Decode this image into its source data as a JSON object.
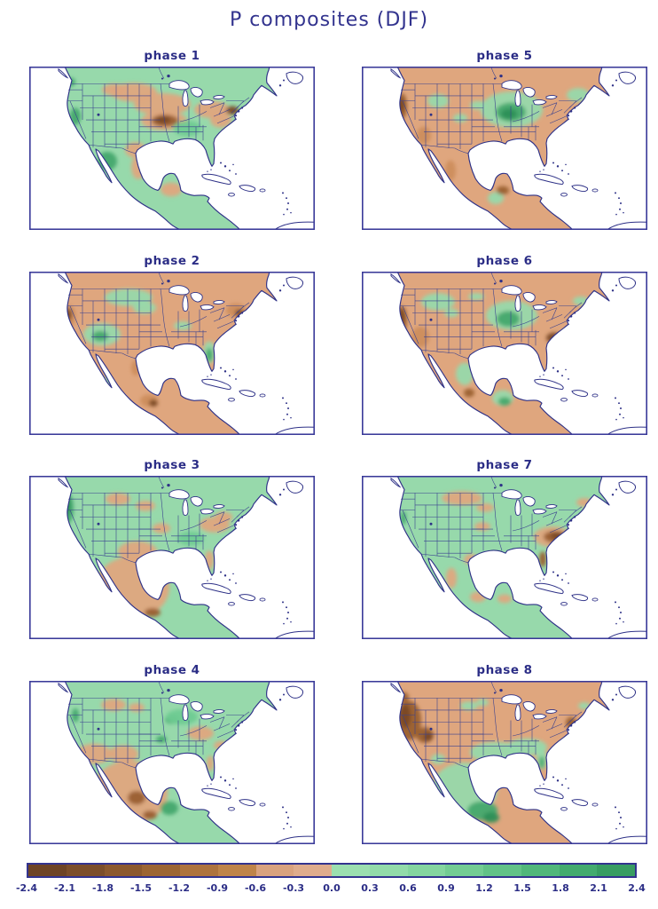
{
  "title": "P composites (DJF)",
  "chart_data": {
    "type": "heatmap",
    "title": "P composites (DJF)",
    "layout": "4x2 grid of North America precipitation-anomaly composite maps, one per MJO phase, shared colorbar at bottom",
    "units": "precipitation anomaly (shaded)",
    "palette": {
      "tan": "#DFA67E",
      "tan2": "#CE8D5C",
      "brown": "#9A5F30",
      "dkbrown": "#7A4826",
      "green": "#97D9AB",
      "green2": "#6FCB92",
      "dkgreen": "#45A86D",
      "vdkgreen": "#2E8F57"
    },
    "panels": [
      {
        "label": "phase 1",
        "base": "green",
        "summary": "Wet West Coast, Southeast and Northeast interior; dry central/northern Plains with strong dry core over Oklahoma-Missouri and dry mid-Atlantic coast; wet northwest Mexico, dry Gulf coast of Mexico and Yucatan.",
        "patches": [
          [
            "tan",
            118,
            30,
            26,
            11
          ],
          [
            "tan",
            150,
            44,
            32,
            13
          ],
          [
            "tan",
            152,
            63,
            26,
            11
          ],
          [
            "tan",
            96,
            27,
            14,
            7
          ],
          [
            "tan",
            206,
            50,
            20,
            10
          ],
          [
            "tan",
            216,
            62,
            12,
            9
          ],
          [
            "tan",
            120,
            97,
            12,
            9
          ],
          [
            "tan",
            123,
            117,
            8,
            14
          ],
          [
            "tan",
            160,
            143,
            12,
            8
          ],
          [
            "brown",
            153,
            63,
            15,
            7
          ],
          [
            "dkbrown",
            151,
            62,
            8,
            4
          ],
          [
            "dkbrown",
            229,
            51,
            7,
            5
          ],
          [
            "dkgreen",
            52,
            58,
            6,
            10
          ],
          [
            "dkgreen",
            88,
            110,
            11,
            11
          ],
          [
            "dkgreen",
            47,
            18,
            5,
            5
          ],
          [
            "green2",
            178,
            72,
            16,
            9
          ]
        ]
      },
      {
        "label": "phase 2",
        "base": "tan",
        "summary": "Dry over most of CONUS and Mexico; wet Southwest, northern Plains band and Florida; strong dry California and Northeast coasts and southern Mexico.",
        "patches": [
          [
            "green",
            82,
            73,
            21,
            13
          ],
          [
            "dkgreen",
            80,
            75,
            9,
            6
          ],
          [
            "green",
            112,
            30,
            27,
            10
          ],
          [
            "green",
            130,
            42,
            13,
            7
          ],
          [
            "green",
            203,
            94,
            7,
            13
          ],
          [
            "dkgreen",
            203,
            97,
            4,
            8
          ],
          [
            "green",
            173,
            63,
            10,
            5
          ],
          [
            "green",
            88,
            128,
            5,
            6
          ],
          [
            "tan2",
            45,
            52,
            7,
            13
          ],
          [
            "dkbrown",
            44,
            50,
            4,
            7
          ],
          [
            "tan2",
            233,
            45,
            11,
            8
          ],
          [
            "dkbrown",
            237,
            48,
            5,
            4
          ],
          [
            "tan2",
            135,
            150,
            10,
            7
          ],
          [
            "dkbrown",
            140,
            153,
            5,
            4
          ],
          [
            "tan2",
            120,
            112,
            5,
            9
          ]
        ]
      },
      {
        "label": "phase 3",
        "base": "green",
        "summary": "Wet across the West and Midwest with strong wet Pacific Northwest coast; dry Texas, all of Mexico and the mid-Atlantic; dry patches in northern Plains.",
        "patches": [
          [
            "dkgreen",
            44,
            38,
            6,
            17
          ],
          [
            "vdkgreen",
            43,
            35,
            3,
            10
          ],
          [
            "tan",
            116,
            130,
            42,
            36
          ],
          [
            "tan",
            122,
            88,
            22,
            12
          ],
          [
            "tan",
            100,
            27,
            14,
            7
          ],
          [
            "tan",
            131,
            35,
            11,
            6
          ],
          [
            "tan",
            209,
            57,
            17,
            9
          ],
          [
            "tan",
            219,
            48,
            10,
            6
          ],
          [
            "tan",
            203,
            98,
            5,
            11
          ],
          [
            "tan",
            149,
            61,
            10,
            6
          ],
          [
            "brown",
            139,
            159,
            9,
            5
          ],
          [
            "green2",
            182,
            73,
            15,
            8
          ]
        ]
      },
      {
        "label": "phase 4",
        "base": "green",
        "summary": "Wet northern and eastern U.S.; dry Southwest, west Texas and Mexico with dark dry west-Mexico coast; dry Tennessee-Virginia strip; wet Yucatan/Guatemala.",
        "patches": [
          [
            "tan",
            73,
            85,
            20,
            12
          ],
          [
            "tan",
            113,
            130,
            43,
            37
          ],
          [
            "tan",
            106,
            85,
            17,
            10
          ],
          [
            "tan",
            95,
            28,
            14,
            7
          ],
          [
            "tan",
            121,
            31,
            9,
            5
          ],
          [
            "tan",
            193,
            61,
            15,
            8
          ],
          [
            "tan",
            216,
            75,
            8,
            5
          ],
          [
            "tan",
            204,
            96,
            4,
            9
          ],
          [
            "brown",
            121,
            136,
            10,
            8
          ],
          [
            "brown",
            136,
            156,
            8,
            5
          ],
          [
            "dkgreen",
            161,
            45,
            8,
            5
          ],
          [
            "dkgreen",
            149,
            68,
            6,
            4
          ],
          [
            "dkgreen",
            158,
            148,
            10,
            8
          ],
          [
            "dkgreen",
            52,
            40,
            4,
            8
          ],
          [
            "green2",
            172,
            42,
            18,
            9
          ]
        ]
      },
      {
        "label": "phase 5",
        "base": "tan",
        "summary": "Dry West, northern tier and Mexico with strong dry California coast; strong wet core over the Ohio and Mississippi valleys; wet New England and southern Mexico/Guatemala.",
        "patches": [
          [
            "brown",
            45,
            46,
            6,
            15
          ],
          [
            "dkbrown",
            44,
            45,
            4,
            8
          ],
          [
            "green",
            169,
            50,
            35,
            21
          ],
          [
            "dkgreen",
            168,
            53,
            17,
            11
          ],
          [
            "vdkgreen",
            166,
            55,
            9,
            6
          ],
          [
            "green",
            244,
            33,
            13,
            8
          ],
          [
            "green",
            86,
            40,
            12,
            8
          ],
          [
            "green",
            131,
            45,
            9,
            5
          ],
          [
            "green",
            111,
            60,
            8,
            5
          ],
          [
            "green",
            151,
            153,
            9,
            7
          ],
          [
            "brown",
            159,
            144,
            7,
            5
          ],
          [
            "tan2",
            100,
            121,
            6,
            12
          ],
          [
            "tan2",
            70,
            80,
            8,
            10
          ]
        ]
      },
      {
        "label": "phase 6",
        "base": "tan",
        "summary": "Dry West with strong dry California coast; dry Southeast coast (dark over Georgia/Carolinas); wet northern Rockies, Midwest core, central Mexico and Yucatan.",
        "patches": [
          [
            "brown",
            45,
            56,
            6,
            16
          ],
          [
            "dkbrown",
            44,
            53,
            4,
            9
          ],
          [
            "dkbrown",
            217,
            77,
            9,
            6
          ],
          [
            "brown",
            121,
            141,
            6,
            5
          ],
          [
            "green",
            86,
            35,
            19,
            10
          ],
          [
            "green",
            169,
            51,
            29,
            17
          ],
          [
            "dkgreen",
            165,
            55,
            13,
            9
          ],
          [
            "green",
            116,
            119,
            10,
            13
          ],
          [
            "green",
            159,
            147,
            12,
            9
          ],
          [
            "dkgreen",
            161,
            151,
            7,
            5
          ],
          [
            "green",
            247,
            34,
            9,
            5
          ],
          [
            "green",
            129,
            29,
            9,
            4
          ],
          [
            "green",
            101,
            48,
            8,
            5
          ],
          [
            "tan2",
            66,
            76,
            10,
            12
          ]
        ]
      },
      {
        "label": "phase 7",
        "base": "green",
        "summary": "Wet over most of the West, center and Mexico interior; dry northern Plains; strong dry Southeast coast from the Carolinas and Georgia through Florida.",
        "patches": [
          [
            "tan",
            113,
            26,
            23,
            8
          ],
          [
            "tan",
            139,
            37,
            10,
            5
          ],
          [
            "tan",
            215,
            71,
            21,
            12
          ],
          [
            "brown",
            218,
            71,
            13,
            7
          ],
          [
            "dkbrown",
            220,
            70,
            7,
            4
          ],
          [
            "tan",
            251,
            31,
            9,
            5
          ],
          [
            "tan",
            101,
            119,
            6,
            12
          ],
          [
            "tan",
            131,
            141,
            9,
            6
          ],
          [
            "tan",
            136,
            59,
            9,
            5
          ],
          [
            "tan",
            123,
            97,
            8,
            6
          ],
          [
            "tan",
            161,
            143,
            8,
            5
          ],
          [
            "brown",
            204,
            97,
            4,
            9
          ],
          [
            "dkgreen",
            47,
            49,
            3,
            8
          ]
        ]
      },
      {
        "label": "phase 8",
        "base": "tan",
        "summary": "Strong dry West (California, Great Basin, Pacific Northwest) and most of the northern U.S.; wet Texas, Gulf Coast, Southeast and Florida; strongly wet Mexico and Yucatan.",
        "patches": [
          [
            "brown",
            53,
            46,
            14,
            23
          ],
          [
            "dkbrown",
            49,
            41,
            6,
            14
          ],
          [
            "brown",
            71,
            63,
            10,
            9
          ],
          [
            "dkbrown",
            75,
            65,
            5,
            5
          ],
          [
            "brown",
            46,
            19,
            7,
            6
          ],
          [
            "brown",
            236,
            49,
            6,
            7
          ],
          [
            "green",
            151,
            83,
            29,
            12
          ],
          [
            "green",
            186,
            77,
            23,
            10
          ],
          [
            "green",
            203,
            91,
            6,
            12
          ],
          [
            "dkgreen",
            203,
            95,
            3,
            7
          ],
          [
            "green",
            116,
            126,
            37,
            31
          ],
          [
            "dkgreen",
            136,
            151,
            17,
            11
          ],
          [
            "vdkgreen",
            146,
            159,
            9,
            6
          ],
          [
            "green",
            121,
            29,
            10,
            5
          ],
          [
            "green",
            136,
            25,
            7,
            4
          ],
          [
            "green",
            251,
            29,
            7,
            4
          ],
          [
            "green",
            86,
            91,
            8,
            6
          ]
        ]
      }
    ],
    "colorbar": {
      "min": -2.4,
      "max": 2.4,
      "step": 0.3,
      "ticks": [
        "-2.4",
        "-2.1",
        "-1.8",
        "-1.5",
        "-1.2",
        "-0.9",
        "-0.6",
        "-0.3",
        "0.0",
        "0.3",
        "0.6",
        "0.9",
        "1.2",
        "1.5",
        "1.8",
        "2.1",
        "2.4"
      ],
      "segment_colors": [
        "#6E4425",
        "#7C4E2A",
        "#8C592E",
        "#9C6533",
        "#AE733D",
        "#BF8449",
        "#D9A27E",
        "#DFAC8C",
        "#9BDFAF",
        "#92DBA9",
        "#84D59F",
        "#73CC93",
        "#62C287",
        "#50B77A",
        "#43AB6E",
        "#389D62"
      ]
    },
    "style_colors": {
      "coastline": "#2E3187",
      "state_border": "#3A418F",
      "panel_border": "#3A3A99",
      "text": "#2B2D86"
    }
  }
}
